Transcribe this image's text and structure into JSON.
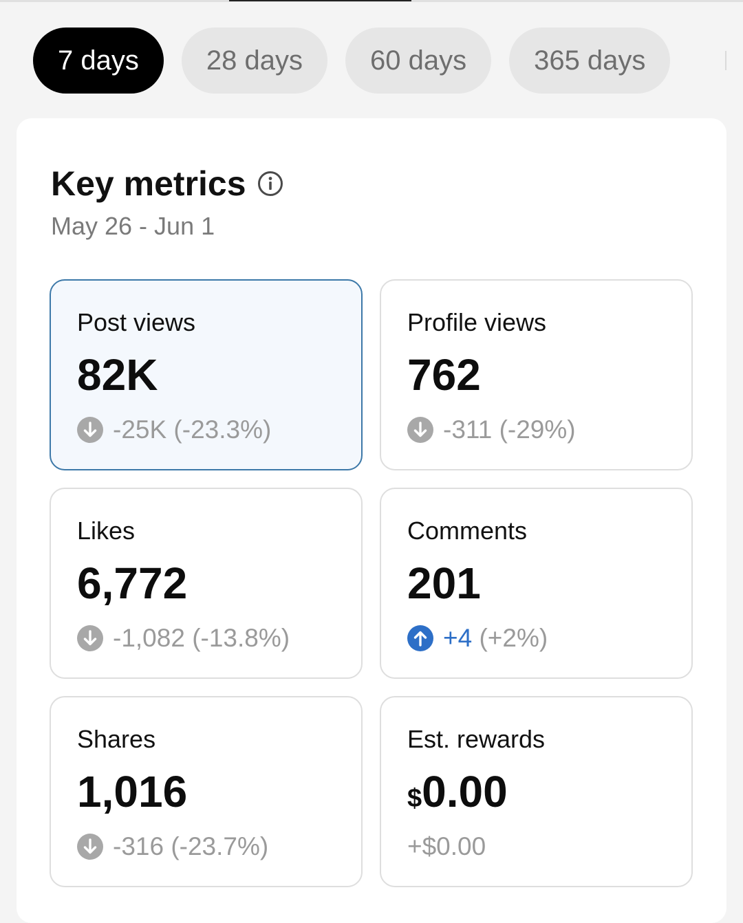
{
  "tabs": [
    {
      "label": "7 days",
      "active": true
    },
    {
      "label": "28 days",
      "active": false
    },
    {
      "label": "60 days",
      "active": false
    },
    {
      "label": "365 days",
      "active": false
    }
  ],
  "key_metrics": {
    "title": "Key metrics",
    "info_icon": "info-circle-icon",
    "date_range": "May 26 - Jun 1"
  },
  "metrics": [
    {
      "label": "Post views",
      "value": "82K",
      "change": "-25K (-23.3%)",
      "direction": "down",
      "selected": true
    },
    {
      "label": "Profile views",
      "value": "762",
      "change": "-311 (-29%)",
      "direction": "down",
      "selected": false
    },
    {
      "label": "Likes",
      "value": "6,772",
      "change": "-1,082 (-13.8%)",
      "direction": "down",
      "selected": false
    },
    {
      "label": "Comments",
      "value": "201",
      "change_amount": "+4",
      "change_pct": "(+2%)",
      "direction": "up",
      "selected": false
    },
    {
      "label": "Shares",
      "value": "1,016",
      "change": "-316 (-23.7%)",
      "direction": "down",
      "selected": false
    },
    {
      "label": "Est. rewards",
      "currency": "$",
      "value": "0.00",
      "change": "+$0.00",
      "direction": "none",
      "selected": false
    }
  ],
  "colors": {
    "active_tab_bg": "#000000",
    "inactive_tab_bg": "#e6e6e6",
    "selected_card_border": "#3c78a8",
    "selected_card_bg": "#f4f8fd",
    "up_color": "#2d6fc7",
    "down_icon_color": "#a8a8a8"
  }
}
